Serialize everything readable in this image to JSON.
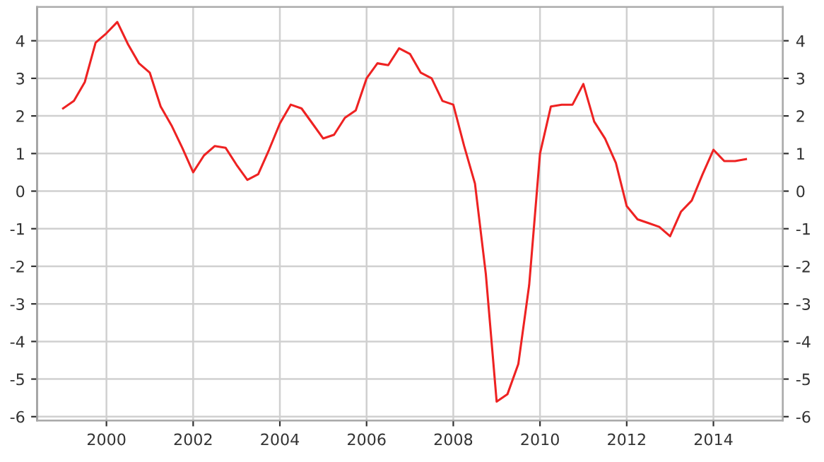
{
  "chart_data": {
    "type": "line",
    "x": [
      1999.0,
      1999.25,
      1999.5,
      1999.75,
      2000.0,
      2000.25,
      2000.5,
      2000.75,
      2001.0,
      2001.25,
      2001.5,
      2001.75,
      2002.0,
      2002.25,
      2002.5,
      2002.75,
      2003.0,
      2003.25,
      2003.5,
      2003.75,
      2004.0,
      2004.25,
      2004.5,
      2004.75,
      2005.0,
      2005.25,
      2005.5,
      2005.75,
      2006.0,
      2006.25,
      2006.5,
      2006.75,
      2007.0,
      2007.25,
      2007.5,
      2007.75,
      2008.0,
      2008.25,
      2008.5,
      2008.75,
      2009.0,
      2009.25,
      2009.5,
      2009.75,
      2010.0,
      2010.25,
      2010.5,
      2010.75,
      2011.0,
      2011.25,
      2011.5,
      2011.75,
      2012.0,
      2012.25,
      2012.5,
      2012.75,
      2013.0,
      2013.25,
      2013.5,
      2013.75,
      2014.0,
      2014.25,
      2014.5,
      2014.75
    ],
    "series": [
      {
        "color": "#ee2222",
        "values": [
          2.2,
          2.4,
          2.9,
          3.95,
          4.2,
          4.5,
          3.9,
          3.4,
          3.15,
          2.25,
          1.75,
          1.15,
          0.5,
          0.95,
          1.2,
          1.15,
          0.7,
          0.3,
          0.45,
          1.1,
          1.8,
          2.3,
          2.2,
          1.8,
          1.4,
          1.5,
          1.95,
          2.15,
          3.0,
          3.4,
          3.35,
          3.8,
          3.65,
          3.15,
          3.0,
          2.4,
          2.3,
          1.2,
          0.2,
          -2.2,
          -5.6,
          -5.4,
          -4.6,
          -2.5,
          1.0,
          2.25,
          2.3,
          2.3,
          2.85,
          1.85,
          1.4,
          0.75,
          -0.4,
          -0.75,
          -0.85,
          -0.95,
          -1.2,
          -0.55,
          -0.25,
          0.45,
          1.1,
          0.8,
          0.8,
          0.85
        ]
      }
    ],
    "xlim": [
      1998.4,
      2015.6
    ],
    "xticks": [
      2000,
      2002,
      2004,
      2006,
      2008,
      2010,
      2012,
      2014
    ],
    "ylim": [
      -6.1,
      4.9
    ],
    "yticks": [
      -6,
      -5,
      -4,
      -3,
      -2,
      -1,
      0,
      1,
      2,
      3,
      4
    ],
    "y2lim": [
      -6.1,
      4.9
    ],
    "y2ticks": [
      -6,
      -5,
      -4,
      -3,
      -2,
      -1,
      0,
      1,
      2,
      3,
      4
    ],
    "grid": true,
    "marker": "none",
    "line_style": "solid"
  }
}
